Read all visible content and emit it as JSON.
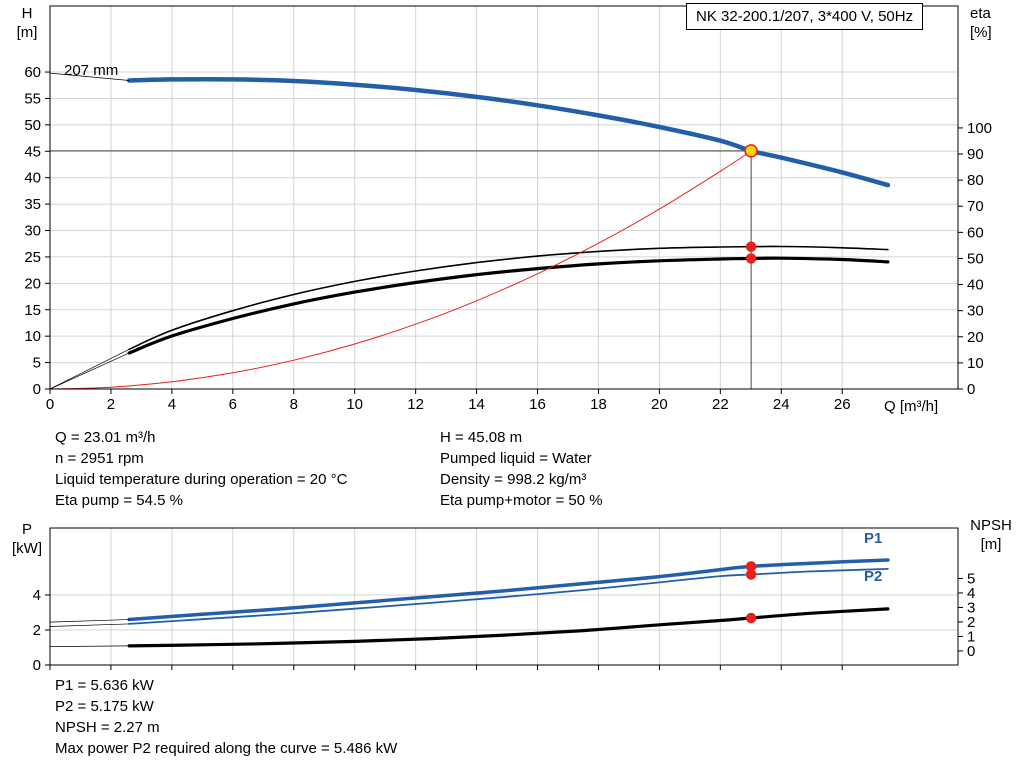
{
  "title_box": {
    "text": "NK 32-200.1/207, 3*400 V, 50Hz"
  },
  "colors": {
    "curve_blue": "#235fa8",
    "red": "#e8211d",
    "duty_yellow": "#ffd500",
    "black": "#000000",
    "grid": "#d4d4d4",
    "guide": "#444444"
  },
  "chart_data": [
    {
      "id": "qh-eta-chart",
      "type": "line",
      "title": "NK 32-200.1/207, 3*400 V, 50Hz",
      "impeller_label": "207 mm",
      "x": {
        "label": "Q [m³/h]",
        "min": 0,
        "max": 29.8,
        "ticks": [
          0,
          2,
          4,
          6,
          8,
          10,
          12,
          14,
          16,
          18,
          20,
          22,
          24,
          26
        ]
      },
      "y_left": {
        "label_line1": "H",
        "label_line2": "[m]",
        "min": 0,
        "max": 72.5,
        "ticks": [
          0,
          5,
          10,
          15,
          20,
          25,
          30,
          35,
          40,
          45,
          50,
          55,
          60
        ]
      },
      "y_right": {
        "label_line1": "eta",
        "label_line2": "[%]",
        "min": 0,
        "max": 146.7,
        "ticks": [
          0,
          10,
          20,
          30,
          40,
          50,
          60,
          70,
          80,
          90,
          100
        ]
      },
      "series": [
        {
          "name": "head-curve-207mm",
          "axis": "left",
          "color": "blue",
          "width": 4.5,
          "points": [
            [
              2.6,
              58.4
            ],
            [
              4,
              58.6
            ],
            [
              6,
              58.6
            ],
            [
              8,
              58.3
            ],
            [
              10,
              57.6
            ],
            [
              12,
              56.6
            ],
            [
              14,
              55.3
            ],
            [
              16,
              53.7
            ],
            [
              18,
              51.8
            ],
            [
              20,
              49.6
            ],
            [
              22,
              47.0
            ],
            [
              23.01,
              45.08
            ],
            [
              24,
              43.8
            ],
            [
              26,
              41.0
            ],
            [
              27.5,
              38.6
            ]
          ]
        },
        {
          "name": "head-curve-lead-in",
          "axis": "left",
          "color": "black",
          "width": 0.8,
          "points": [
            [
              0,
              59.8
            ],
            [
              2.6,
              58.4
            ]
          ]
        },
        {
          "name": "eta-pump-curve",
          "axis": "right",
          "color": "black",
          "width": 1.6,
          "points": [
            [
              2.6,
              15.2
            ],
            [
              4,
              22.5
            ],
            [
              6,
              30.0
            ],
            [
              8,
              36.2
            ],
            [
              10,
              41.2
            ],
            [
              12,
              45.2
            ],
            [
              14,
              48.4
            ],
            [
              16,
              50.9
            ],
            [
              18,
              52.7
            ],
            [
              20,
              53.9
            ],
            [
              22,
              54.4
            ],
            [
              23.01,
              54.5
            ],
            [
              24,
              54.6
            ],
            [
              26,
              54.1
            ],
            [
              27.5,
              53.4
            ]
          ]
        },
        {
          "name": "eta-pump-lead-in",
          "axis": "right",
          "color": "black",
          "width": 0.7,
          "points": [
            [
              0,
              0
            ],
            [
              2.6,
              15.2
            ]
          ]
        },
        {
          "name": "eta-pump-motor-curve",
          "axis": "right",
          "color": "black",
          "width": 3.2,
          "points": [
            [
              2.6,
              13.8
            ],
            [
              4,
              20.3
            ],
            [
              6,
              27.0
            ],
            [
              8,
              32.6
            ],
            [
              10,
              37.1
            ],
            [
              12,
              40.8
            ],
            [
              14,
              43.8
            ],
            [
              16,
              46.1
            ],
            [
              18,
              47.9
            ],
            [
              20,
              49.1
            ],
            [
              22,
              49.8
            ],
            [
              23.01,
              50.0
            ],
            [
              24,
              50.1
            ],
            [
              26,
              49.6
            ],
            [
              27.5,
              48.7
            ]
          ]
        },
        {
          "name": "eta-pump-motor-lead-in",
          "axis": "right",
          "color": "black",
          "width": 0.7,
          "points": [
            [
              0,
              0
            ],
            [
              2.6,
              13.8
            ]
          ]
        },
        {
          "name": "duty-parabola",
          "axis": "left",
          "color": "red",
          "width": 1,
          "points": [
            [
              0,
              0
            ],
            [
              2,
              0.34
            ],
            [
              4,
              1.36
            ],
            [
              6,
              3.07
            ],
            [
              8,
              5.45
            ],
            [
              10,
              8.51
            ],
            [
              12,
              12.26
            ],
            [
              14,
              16.69
            ],
            [
              16,
              21.8
            ],
            [
              18,
              27.59
            ],
            [
              20,
              34.06
            ],
            [
              22,
              41.21
            ],
            [
              23.01,
              45.08
            ]
          ]
        }
      ],
      "guides": [
        {
          "name": "duty-vline",
          "type": "v",
          "at": 23.01,
          "axis": "left",
          "from": 0,
          "to": 45.08
        },
        {
          "name": "duty-hline",
          "type": "h",
          "at": 45.08,
          "axis": "left",
          "from": 0,
          "to": 23.01
        }
      ],
      "markers": [
        {
          "name": "duty-point",
          "axis": "left",
          "x": 23.01,
          "y": 45.08,
          "r": 6,
          "fill": "yellow",
          "stroke": "red"
        },
        {
          "name": "eta-pump-duty-dot",
          "axis": "right",
          "x": 23.01,
          "y": 54.5,
          "r": 4.5,
          "fill": "red",
          "stroke": "red"
        },
        {
          "name": "eta-pump-motor-duty-dot",
          "axis": "right",
          "x": 23.01,
          "y": 50.0,
          "r": 4.5,
          "fill": "red",
          "stroke": "red"
        }
      ]
    },
    {
      "id": "power-npsh-chart",
      "type": "line",
      "x": {
        "label": "",
        "min": 0,
        "max": 29.8,
        "ticks": [
          0,
          2,
          4,
          6,
          8,
          10,
          12,
          14,
          16,
          18,
          20,
          22,
          24,
          26
        ]
      },
      "y_left": {
        "label_line1": "P",
        "label_line2": "[kW]",
        "min": 0,
        "max": 7.83,
        "ticks": [
          0,
          2,
          4
        ]
      },
      "y_right": {
        "label_line1": "NPSH",
        "label_line2": "[m]",
        "min": -0.97,
        "max": 8.48,
        "ticks": [
          0,
          1,
          2,
          3,
          4,
          5
        ]
      },
      "series": [
        {
          "name": "p1-curve",
          "axis": "left",
          "color": "blue",
          "width": 3.5,
          "points": [
            [
              2.6,
              2.6
            ],
            [
              5,
              2.9
            ],
            [
              7.5,
              3.2
            ],
            [
              10,
              3.55
            ],
            [
              12.5,
              3.9
            ],
            [
              15,
              4.25
            ],
            [
              17.5,
              4.65
            ],
            [
              20,
              5.05
            ],
            [
              22,
              5.45
            ],
            [
              23.01,
              5.636
            ],
            [
              25,
              5.82
            ],
            [
              27.5,
              6.0
            ]
          ]
        },
        {
          "name": "p1-lead-in",
          "axis": "left",
          "color": "black",
          "width": 0.7,
          "points": [
            [
              0,
              2.45
            ],
            [
              2.6,
              2.6
            ]
          ]
        },
        {
          "name": "p2-curve",
          "axis": "left",
          "color": "blue",
          "width": 1.8,
          "points": [
            [
              2.6,
              2.35
            ],
            [
              5,
              2.62
            ],
            [
              7.5,
              2.9
            ],
            [
              10,
              3.22
            ],
            [
              12.5,
              3.55
            ],
            [
              15,
              3.9
            ],
            [
              17.5,
              4.28
            ],
            [
              20,
              4.72
            ],
            [
              22,
              5.08
            ],
            [
              23.01,
              5.175
            ],
            [
              25,
              5.35
            ],
            [
              27.5,
              5.49
            ]
          ]
        },
        {
          "name": "p2-lead-in",
          "axis": "left",
          "color": "black",
          "width": 0.7,
          "points": [
            [
              0,
              2.2
            ],
            [
              2.6,
              2.35
            ]
          ]
        },
        {
          "name": "npsh-curve",
          "axis": "right",
          "color": "black",
          "width": 3.2,
          "points": [
            [
              2.6,
              0.35
            ],
            [
              5,
              0.42
            ],
            [
              7.5,
              0.52
            ],
            [
              10,
              0.66
            ],
            [
              12.5,
              0.85
            ],
            [
              15,
              1.1
            ],
            [
              17.5,
              1.4
            ],
            [
              20,
              1.8
            ],
            [
              22,
              2.1
            ],
            [
              23.01,
              2.27
            ],
            [
              25,
              2.6
            ],
            [
              27.5,
              2.9
            ]
          ]
        },
        {
          "name": "npsh-lead-in",
          "axis": "right",
          "color": "black",
          "width": 0.7,
          "points": [
            [
              0,
              0.3
            ],
            [
              2.6,
              0.35
            ]
          ]
        }
      ],
      "markers": [
        {
          "name": "p1-duty-dot",
          "axis": "left",
          "x": 23.01,
          "y": 5.636,
          "r": 4.5,
          "fill": "red",
          "stroke": "red"
        },
        {
          "name": "p2-duty-dot",
          "axis": "left",
          "x": 23.01,
          "y": 5.175,
          "r": 4.5,
          "fill": "red",
          "stroke": "red"
        },
        {
          "name": "npsh-duty-dot",
          "axis": "right",
          "x": 23.01,
          "y": 2.27,
          "r": 4.5,
          "fill": "red",
          "stroke": "red"
        }
      ],
      "curve_labels": [
        {
          "text": "P1"
        },
        {
          "text": "P2"
        }
      ]
    }
  ],
  "info_block": {
    "left": [
      "Q = 23.01 m³/h",
      "n = 2951 rpm",
      "Liquid temperature during operation = 20 °C",
      "Eta pump = 54.5 %"
    ],
    "right": [
      "H = 45.08 m",
      "Pumped liquid = Water",
      "Density = 998.2 kg/m³",
      "Eta pump+motor = 50 %"
    ]
  },
  "result_block": [
    "P1 = 5.636 kW",
    "P2 = 5.175 kW",
    "NPSH = 2.27 m",
    "Max power P2 required along the curve = 5.486 kW"
  ]
}
